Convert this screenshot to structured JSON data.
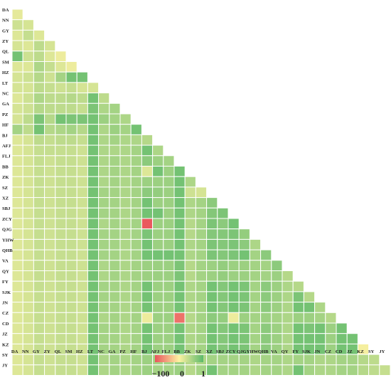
{
  "chart_data": {
    "type": "heatmap",
    "shape": "lower-triangular",
    "title": "",
    "xlabel": "",
    "ylabel": "",
    "labels": [
      "DA",
      "NN",
      "GY",
      "ZY",
      "QL",
      "SM",
      "HZ",
      "LT",
      "NC",
      "GA",
      "PZ",
      "HF",
      "BJ",
      "AFJ",
      "FLJ",
      "BB",
      "ZK",
      "SZ",
      "XZ",
      "SBJ",
      "ZCY",
      "QJG",
      "YHW",
      "QHB",
      "VA",
      "QY",
      "FY",
      "SJK",
      "JN",
      "CZ",
      "CD",
      "JZ",
      "KZ",
      "SY",
      "JY"
    ],
    "color_scale": {
      "min": -100,
      "mid": 0,
      "max": 1,
      "colors": [
        "#e9545c",
        "#fdf2a2",
        "#5cb96b"
      ],
      "tick_labels": [
        "−100",
        "0",
        "1"
      ]
    },
    "values": [
      [
        0.15
      ],
      [
        0.3,
        0.25
      ],
      [
        0.2,
        0.35,
        0.2
      ],
      [
        0.25,
        0.2,
        0.4,
        0.25
      ],
      [
        0.85,
        0.3,
        0.4,
        0.2,
        0.1
      ],
      [
        0.2,
        0.2,
        0.5,
        0.35,
        0.2,
        0.1
      ],
      [
        0.25,
        0.3,
        0.45,
        0.3,
        0.55,
        0.85,
        0.85
      ],
      [
        0.25,
        0.25,
        0.4,
        0.35,
        0.3,
        0.35,
        0.25,
        0.25
      ],
      [
        0.2,
        0.3,
        0.5,
        0.4,
        0.4,
        0.45,
        0.4,
        0.85,
        0.4
      ],
      [
        0.25,
        0.3,
        0.45,
        0.4,
        0.4,
        0.4,
        0.35,
        0.8,
        0.5,
        0.55
      ],
      [
        0.25,
        0.4,
        0.8,
        0.45,
        0.85,
        0.8,
        0.8,
        0.85,
        0.6,
        0.55,
        0.5
      ],
      [
        0.55,
        0.4,
        0.85,
        0.45,
        0.5,
        0.55,
        0.45,
        0.85,
        0.5,
        0.6,
        0.55,
        0.85
      ],
      [
        0.2,
        0.25,
        0.4,
        0.35,
        0.4,
        0.4,
        0.35,
        0.85,
        0.5,
        0.55,
        0.5,
        0.5,
        0.45
      ],
      [
        0.2,
        0.25,
        0.35,
        0.35,
        0.35,
        0.35,
        0.3,
        0.85,
        0.5,
        0.5,
        0.5,
        0.55,
        0.85,
        0.5
      ],
      [
        0.2,
        0.25,
        0.35,
        0.3,
        0.35,
        0.35,
        0.3,
        0.85,
        0.5,
        0.55,
        0.5,
        0.55,
        0.7,
        0.6,
        0.55
      ],
      [
        0.2,
        0.25,
        0.35,
        0.3,
        0.35,
        0.35,
        0.3,
        0.85,
        0.5,
        0.55,
        0.5,
        0.55,
        0.2,
        0.85,
        0.6,
        0.85
      ],
      [
        0.2,
        0.25,
        0.35,
        0.3,
        0.35,
        0.35,
        0.3,
        0.85,
        0.5,
        0.55,
        0.5,
        0.55,
        0.6,
        0.6,
        0.6,
        0.85,
        0.5
      ],
      [
        0.2,
        0.25,
        0.35,
        0.3,
        0.35,
        0.35,
        0.3,
        0.85,
        0.55,
        0.55,
        0.5,
        0.55,
        0.7,
        0.65,
        0.6,
        0.85,
        0.3,
        0.25
      ],
      [
        0.2,
        0.25,
        0.35,
        0.3,
        0.35,
        0.35,
        0.3,
        0.85,
        0.55,
        0.55,
        0.5,
        0.55,
        0.85,
        0.6,
        0.6,
        0.85,
        0.5,
        0.55,
        0.7
      ],
      [
        0.2,
        0.25,
        0.35,
        0.3,
        0.35,
        0.35,
        0.3,
        0.85,
        0.55,
        0.55,
        0.5,
        0.55,
        0.85,
        0.85,
        0.6,
        0.85,
        0.5,
        0.55,
        0.75,
        0.8
      ],
      [
        0.2,
        0.25,
        0.35,
        0.3,
        0.35,
        0.35,
        0.3,
        0.85,
        0.5,
        0.55,
        0.5,
        0.55,
        -90,
        0.6,
        0.6,
        0.85,
        0.45,
        0.55,
        0.8,
        0.7,
        0.85
      ],
      [
        0.2,
        0.25,
        0.35,
        0.3,
        0.35,
        0.35,
        0.3,
        0.85,
        0.55,
        0.55,
        0.5,
        0.55,
        0.8,
        0.6,
        0.6,
        0.85,
        0.45,
        0.55,
        0.75,
        0.75,
        0.8,
        0.65
      ],
      [
        0.2,
        0.25,
        0.35,
        0.3,
        0.35,
        0.35,
        0.3,
        0.85,
        0.55,
        0.55,
        0.5,
        0.55,
        0.85,
        0.6,
        0.6,
        0.85,
        0.5,
        0.55,
        0.8,
        0.75,
        0.8,
        0.7,
        0.5
      ],
      [
        0.2,
        0.25,
        0.35,
        0.3,
        0.35,
        0.35,
        0.3,
        0.85,
        0.55,
        0.55,
        0.5,
        0.55,
        0.85,
        0.85,
        0.85,
        0.85,
        0.5,
        0.55,
        0.8,
        0.75,
        0.8,
        0.85,
        0.55,
        0.7
      ],
      [
        0.2,
        0.25,
        0.35,
        0.3,
        0.35,
        0.35,
        0.3,
        0.85,
        0.5,
        0.55,
        0.5,
        0.55,
        0.6,
        0.6,
        0.6,
        0.8,
        0.45,
        0.55,
        0.6,
        0.65,
        0.6,
        0.6,
        0.55,
        0.55,
        0.7
      ],
      [
        0.2,
        0.25,
        0.35,
        0.3,
        0.35,
        0.35,
        0.3,
        0.85,
        0.5,
        0.55,
        0.5,
        0.55,
        0.6,
        0.6,
        0.6,
        0.8,
        0.45,
        0.55,
        0.6,
        0.65,
        0.6,
        0.6,
        0.55,
        0.55,
        0.6,
        0.45
      ],
      [
        0.2,
        0.25,
        0.35,
        0.3,
        0.35,
        0.35,
        0.3,
        0.85,
        0.55,
        0.55,
        0.5,
        0.55,
        0.85,
        0.6,
        0.6,
        0.85,
        0.5,
        0.55,
        0.85,
        0.75,
        0.85,
        0.8,
        0.55,
        0.7,
        0.6,
        0.5,
        0.45
      ],
      [
        0.2,
        0.25,
        0.35,
        0.3,
        0.35,
        0.35,
        0.3,
        0.85,
        0.55,
        0.55,
        0.5,
        0.55,
        0.85,
        0.6,
        0.6,
        0.85,
        0.5,
        0.55,
        0.85,
        0.75,
        0.85,
        0.8,
        0.55,
        0.7,
        0.6,
        0.5,
        0.8,
        0.45
      ],
      [
        0.2,
        0.25,
        0.35,
        0.3,
        0.35,
        0.35,
        0.3,
        0.85,
        0.55,
        0.55,
        0.5,
        0.55,
        0.85,
        0.6,
        0.6,
        0.85,
        0.5,
        0.55,
        0.85,
        0.75,
        0.85,
        0.8,
        0.55,
        0.7,
        0.6,
        0.5,
        0.85,
        0.85,
        0.5
      ],
      [
        0.2,
        0.25,
        0.35,
        0.3,
        0.35,
        0.35,
        0.3,
        0.85,
        0.5,
        0.55,
        0.5,
        0.55,
        0.1,
        0.6,
        0.6,
        -50,
        0.45,
        0.55,
        0.7,
        0.65,
        0.1,
        0.6,
        0.55,
        0.6,
        0.55,
        0.5,
        0.6,
        0.6,
        0.55,
        0.45
      ],
      [
        0.2,
        0.25,
        0.35,
        0.3,
        0.35,
        0.35,
        0.3,
        0.85,
        0.55,
        0.55,
        0.5,
        0.55,
        0.85,
        0.6,
        0.6,
        0.85,
        0.5,
        0.55,
        0.85,
        0.75,
        0.85,
        0.8,
        0.55,
        0.7,
        0.6,
        0.5,
        0.85,
        0.8,
        0.85,
        0.6,
        0.85
      ],
      [
        0.2,
        0.25,
        0.35,
        0.3,
        0.35,
        0.35,
        0.3,
        0.85,
        0.55,
        0.55,
        0.5,
        0.55,
        0.85,
        0.6,
        0.6,
        0.85,
        0.5,
        0.55,
        0.85,
        0.75,
        0.85,
        0.8,
        0.55,
        0.7,
        0.6,
        0.5,
        0.85,
        0.85,
        0.85,
        0.6,
        0.85,
        0.85
      ],
      [
        0.2,
        0.25,
        0.35,
        0.3,
        0.35,
        0.35,
        0.3,
        0.85,
        0.55,
        0.55,
        0.5,
        0.55,
        0.85,
        0.6,
        0.6,
        0.85,
        0.5,
        0.55,
        0.85,
        0.75,
        0.85,
        0.8,
        0.55,
        0.7,
        0.6,
        0.5,
        0.85,
        0.85,
        0.85,
        0.6,
        0.85,
        0.85,
        0.05
      ],
      [
        0.2,
        0.25,
        0.35,
        0.3,
        0.35,
        0.35,
        0.3,
        0.85,
        0.5,
        0.55,
        0.5,
        0.55,
        0.6,
        0.55,
        0.55,
        0.6,
        0.45,
        0.5,
        0.55,
        0.55,
        0.55,
        0.55,
        0.5,
        0.55,
        0.55,
        0.5,
        0.55,
        0.55,
        0.5,
        0.5,
        0.55,
        0.55,
        0.45,
        0.4
      ],
      [
        0.2,
        0.25,
        0.35,
        0.3,
        0.35,
        0.35,
        0.3,
        0.85,
        0.5,
        0.55,
        0.5,
        0.55,
        0.6,
        0.55,
        0.55,
        0.6,
        0.45,
        0.55,
        0.85,
        0.55,
        0.55,
        0.55,
        0.5,
        0.55,
        0.55,
        0.5,
        0.85,
        0.55,
        0.5,
        0.5,
        0.55,
        0.55,
        0.45,
        0.4,
        0.35
      ]
    ]
  }
}
